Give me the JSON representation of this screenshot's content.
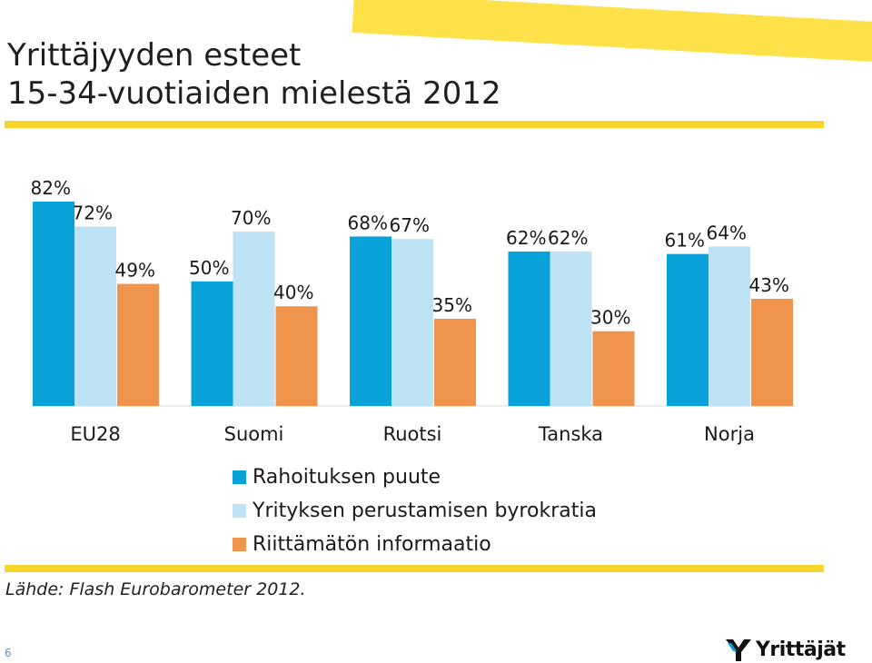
{
  "slide": {
    "title_line1": "Yrittäjyyden esteet",
    "title_line2": "15-34-vuotiaiden mielestä 2012",
    "source": "Lähde: Flash Eurobarometer 2012.",
    "page_number": "6",
    "logo_text": "Yrittäjät",
    "logo_icon": "yrittajat-logo-icon"
  },
  "colors": {
    "series1": "#0aa3d9",
    "series2": "#bde3f5",
    "series3": "#f0934d",
    "rule": "#f9d42a",
    "stripe": "#ffe24a"
  },
  "chart_data": {
    "type": "bar",
    "categories": [
      "EU28",
      "Suomi",
      "Ruotsi",
      "Tanska",
      "Norja"
    ],
    "series": [
      {
        "name": "Rahoituksen puute",
        "values": [
          82,
          50,
          68,
          62,
          61
        ]
      },
      {
        "name": "Yrityksen perustamisen byrokratia",
        "values": [
          72,
          70,
          67,
          62,
          64
        ]
      },
      {
        "name": "Riittämätön informaatio",
        "values": [
          49,
          40,
          35,
          30,
          43
        ]
      }
    ],
    "value_suffix": "%",
    "ylim": [
      0,
      82
    ],
    "grid": false,
    "legend_position": "bottom"
  }
}
